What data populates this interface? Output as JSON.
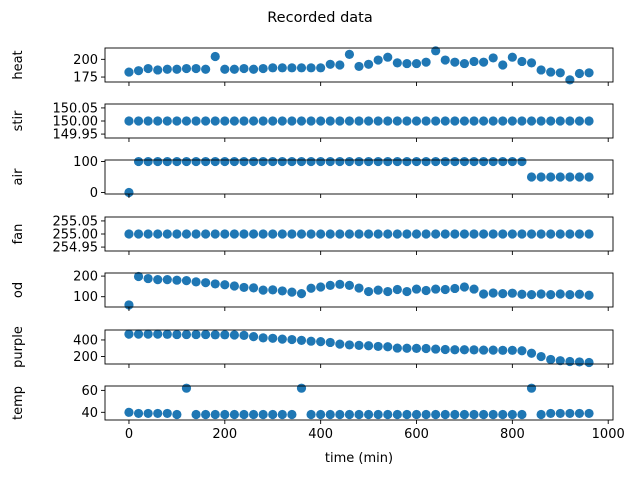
{
  "figure": {
    "title": "Recorded data",
    "xlabel": "time (min)",
    "xlim": [
      -50,
      1010
    ],
    "xticks": [
      0,
      200,
      400,
      600,
      800,
      1000
    ]
  },
  "chart_data": [
    {
      "type": "scatter",
      "ylabel": "heat",
      "ylim": [
        168,
        216
      ],
      "yticks": [
        175,
        200
      ],
      "color": "#1f77b4",
      "x": [
        0,
        20,
        40,
        60,
        80,
        100,
        120,
        140,
        160,
        180,
        200,
        220,
        240,
        260,
        280,
        300,
        320,
        340,
        360,
        380,
        400,
        420,
        440,
        460,
        480,
        500,
        520,
        540,
        560,
        580,
        600,
        620,
        640,
        660,
        680,
        700,
        720,
        740,
        760,
        780,
        800,
        820,
        840,
        860,
        880,
        900,
        920,
        940,
        960
      ],
      "y": [
        182,
        184,
        187,
        185,
        186,
        186,
        187,
        187,
        186,
        204,
        186,
        186,
        187,
        186,
        187,
        188,
        188,
        188,
        188,
        188,
        188,
        193,
        192,
        207,
        190,
        193,
        199,
        203,
        195,
        194,
        194,
        196,
        212,
        199,
        196,
        194,
        197,
        196,
        202,
        192,
        203,
        197,
        195,
        185,
        182,
        181,
        171,
        180,
        181
      ]
    },
    {
      "type": "scatter",
      "ylabel": "stir",
      "ylim": [
        149.935,
        150.065
      ],
      "yticks": [
        149.95,
        150.0,
        150.05
      ],
      "ytick_labels": [
        "149.95",
        "150.00",
        "150.05"
      ],
      "color": "#1f77b4",
      "x": [
        0,
        20,
        40,
        60,
        80,
        100,
        120,
        140,
        160,
        180,
        200,
        220,
        240,
        260,
        280,
        300,
        320,
        340,
        360,
        380,
        400,
        420,
        440,
        460,
        480,
        500,
        520,
        540,
        560,
        580,
        600,
        620,
        640,
        660,
        680,
        700,
        720,
        740,
        760,
        780,
        800,
        820,
        840,
        860,
        880,
        900,
        920,
        940,
        960
      ],
      "y": [
        150,
        150,
        150,
        150,
        150,
        150,
        150,
        150,
        150,
        150,
        150,
        150,
        150,
        150,
        150,
        150,
        150,
        150,
        150,
        150,
        150,
        150,
        150,
        150,
        150,
        150,
        150,
        150,
        150,
        150,
        150,
        150,
        150,
        150,
        150,
        150,
        150,
        150,
        150,
        150,
        150,
        150,
        150,
        150,
        150,
        150,
        150,
        150,
        150
      ]
    },
    {
      "type": "scatter",
      "ylabel": "air",
      "ylim": [
        -5,
        105
      ],
      "yticks": [
        0,
        100
      ],
      "color": "#1f77b4",
      "x": [
        0,
        20,
        40,
        60,
        80,
        100,
        120,
        140,
        160,
        180,
        200,
        220,
        240,
        260,
        280,
        300,
        320,
        340,
        360,
        380,
        400,
        420,
        440,
        460,
        480,
        500,
        520,
        540,
        560,
        580,
        600,
        620,
        640,
        660,
        680,
        700,
        720,
        740,
        760,
        780,
        800,
        820,
        840,
        860,
        880,
        900,
        920,
        940,
        960
      ],
      "y": [
        0,
        100,
        100,
        100,
        100,
        100,
        100,
        100,
        100,
        100,
        100,
        100,
        100,
        100,
        100,
        100,
        100,
        100,
        100,
        100,
        100,
        100,
        100,
        100,
        100,
        100,
        100,
        100,
        100,
        100,
        100,
        100,
        100,
        100,
        100,
        100,
        100,
        100,
        100,
        100,
        100,
        100,
        50,
        50,
        50,
        50,
        50,
        50,
        50
      ]
    },
    {
      "type": "scatter",
      "ylabel": "fan",
      "ylim": [
        254.935,
        255.065
      ],
      "yticks": [
        254.95,
        255.0,
        255.05
      ],
      "ytick_labels": [
        "254.95",
        "255.00",
        "255.05"
      ],
      "color": "#1f77b4",
      "x": [
        0,
        20,
        40,
        60,
        80,
        100,
        120,
        140,
        160,
        180,
        200,
        220,
        240,
        260,
        280,
        300,
        320,
        340,
        360,
        380,
        400,
        420,
        440,
        460,
        480,
        500,
        520,
        540,
        560,
        580,
        600,
        620,
        640,
        660,
        680,
        700,
        720,
        740,
        760,
        780,
        800,
        820,
        840,
        860,
        880,
        900,
        920,
        940,
        960
      ],
      "y": [
        255,
        255,
        255,
        255,
        255,
        255,
        255,
        255,
        255,
        255,
        255,
        255,
        255,
        255,
        255,
        255,
        255,
        255,
        255,
        255,
        255,
        255,
        255,
        255,
        255,
        255,
        255,
        255,
        255,
        255,
        255,
        255,
        255,
        255,
        255,
        255,
        255,
        255,
        255,
        255,
        255,
        255,
        255,
        255,
        255,
        255,
        255,
        255,
        255
      ]
    },
    {
      "type": "scatter",
      "ylabel": "od",
      "ylim": [
        50,
        215
      ],
      "yticks": [
        100,
        200
      ],
      "color": "#1f77b4",
      "x": [
        0,
        20,
        40,
        60,
        80,
        100,
        120,
        140,
        160,
        180,
        200,
        220,
        240,
        260,
        280,
        300,
        320,
        340,
        360,
        380,
        400,
        420,
        440,
        460,
        480,
        500,
        520,
        540,
        560,
        580,
        600,
        620,
        640,
        660,
        680,
        700,
        720,
        740,
        760,
        780,
        800,
        820,
        840,
        860,
        880,
        900,
        920,
        940,
        960
      ],
      "y": [
        60,
        198,
        188,
        183,
        183,
        180,
        178,
        172,
        168,
        162,
        158,
        152,
        145,
        143,
        132,
        133,
        128,
        122,
        115,
        141,
        147,
        155,
        160,
        155,
        142,
        125,
        132,
        125,
        135,
        125,
        137,
        130,
        137,
        135,
        140,
        147,
        137,
        113,
        118,
        115,
        117,
        112,
        110,
        113,
        110,
        113,
        110,
        112,
        107
      ]
    },
    {
      "type": "scatter",
      "ylabel": "purple",
      "ylim": [
        110,
        520
      ],
      "yticks": [
        200,
        400
      ],
      "color": "#1f77b4",
      "x": [
        0,
        20,
        40,
        60,
        80,
        100,
        120,
        140,
        160,
        180,
        200,
        220,
        240,
        260,
        280,
        300,
        320,
        340,
        360,
        380,
        400,
        420,
        440,
        460,
        480,
        500,
        520,
        540,
        560,
        580,
        600,
        620,
        640,
        660,
        680,
        700,
        720,
        740,
        760,
        780,
        800,
        820,
        840,
        860,
        880,
        900,
        920,
        940,
        960
      ],
      "y": [
        470,
        470,
        470,
        470,
        468,
        465,
        465,
        465,
        465,
        462,
        462,
        460,
        455,
        440,
        425,
        420,
        410,
        405,
        395,
        385,
        380,
        370,
        350,
        340,
        335,
        330,
        322,
        318,
        302,
        300,
        298,
        297,
        290,
        285,
        282,
        282,
        280,
        278,
        277,
        275,
        275,
        270,
        240,
        200,
        165,
        150,
        140,
        135,
        128
      ]
    },
    {
      "type": "scatter",
      "ylabel": "temp",
      "ylim": [
        33,
        64
      ],
      "yticks": [
        40,
        60
      ],
      "color": "#1f77b4",
      "x": [
        0,
        20,
        40,
        60,
        80,
        100,
        120,
        140,
        160,
        180,
        200,
        220,
        240,
        260,
        280,
        300,
        320,
        340,
        360,
        380,
        400,
        420,
        440,
        460,
        480,
        500,
        520,
        540,
        560,
        580,
        600,
        620,
        640,
        660,
        680,
        700,
        720,
        740,
        760,
        780,
        800,
        820,
        840,
        860,
        880,
        900,
        920,
        940,
        960
      ],
      "y": [
        40,
        39,
        39,
        39,
        39,
        38,
        62,
        38,
        38,
        38,
        38,
        38,
        38,
        38,
        38,
        38,
        38,
        38,
        62,
        38,
        38,
        38,
        38,
        38,
        38,
        38,
        38,
        38,
        38,
        38,
        38,
        38,
        38,
        38,
        38,
        38,
        38,
        38,
        38,
        38,
        38,
        38,
        62,
        38,
        39,
        39,
        39,
        39,
        39
      ]
    }
  ]
}
